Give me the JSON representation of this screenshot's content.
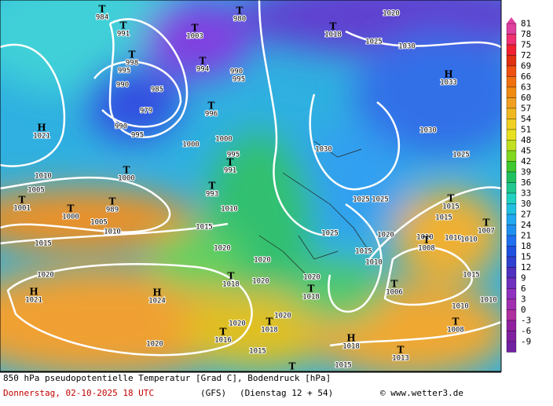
{
  "map": {
    "isobar_labels": [
      "1020",
      "1025",
      "1030",
      "1030",
      "1025",
      "1030",
      "1025",
      "1025",
      "1025",
      "1020",
      "1015",
      "1010",
      "1015",
      "1010",
      "1010",
      "1015",
      "1015",
      "1020",
      "1010",
      "1005",
      "1005",
      "1010",
      "1000",
      "1000",
      "995",
      "1010",
      "1020",
      "1020",
      "1020",
      "1020",
      "1020",
      "1015",
      "1015",
      "1020",
      "1010",
      "1010",
      "1015",
      "1010",
      "990",
      "995",
      "990",
      "995",
      "985",
      "979",
      "990",
      "995",
      "1020"
    ],
    "pressure_centers": [
      {
        "symbol": "T",
        "value": "984"
      },
      {
        "symbol": "T",
        "value": "991"
      },
      {
        "symbol": "T",
        "value": "1003"
      },
      {
        "symbol": "T",
        "value": "980"
      },
      {
        "symbol": "T",
        "value": "1018"
      },
      {
        "symbol": "H",
        "value": "1033"
      },
      {
        "symbol": "T",
        "value": "994"
      },
      {
        "symbol": "T",
        "value": "998"
      },
      {
        "symbol": "H",
        "value": "1021"
      },
      {
        "symbol": "T",
        "value": "1000"
      },
      {
        "symbol": "T",
        "value": "989"
      },
      {
        "symbol": "T",
        "value": "1001"
      },
      {
        "symbol": "T",
        "value": "1000"
      },
      {
        "symbol": "T",
        "value": "991"
      },
      {
        "symbol": "T",
        "value": "993"
      },
      {
        "symbol": "T",
        "value": "996"
      },
      {
        "symbol": "H",
        "value": "1024"
      },
      {
        "symbol": "H",
        "value": "1021"
      },
      {
        "symbol": "T",
        "value": "1018"
      },
      {
        "symbol": "T",
        "value": "1018"
      },
      {
        "symbol": "T",
        "value": "1006"
      },
      {
        "symbol": "T",
        "value": "1008"
      },
      {
        "symbol": "T",
        "value": "1016"
      },
      {
        "symbol": "T",
        "value": "1018"
      },
      {
        "symbol": "H",
        "value": "1018"
      },
      {
        "symbol": "T",
        "value": "1013"
      },
      {
        "symbol": "T",
        "value": "1008"
      },
      {
        "symbol": "T",
        "value": "1015"
      },
      {
        "symbol": "T",
        "value": "1007"
      },
      {
        "symbol": "T"
      }
    ],
    "color_scale": [
      81,
      78,
      75,
      72,
      69,
      66,
      63,
      60,
      57,
      54,
      51,
      48,
      45,
      42,
      39,
      36,
      33,
      30,
      27,
      24,
      21,
      18,
      15,
      12,
      9,
      6,
      3,
      0,
      -3,
      -6,
      -9
    ]
  },
  "footer": {
    "title": "850 hPa pseudopotentielle Temperatur [Grad C], Bodendruck [hPa]",
    "date": "Donnerstag, 02-10-2025  18 UTC",
    "model": "(GFS)",
    "run": "(Dienstag 12 + 54)",
    "credit": "© www.wetter3.de"
  }
}
